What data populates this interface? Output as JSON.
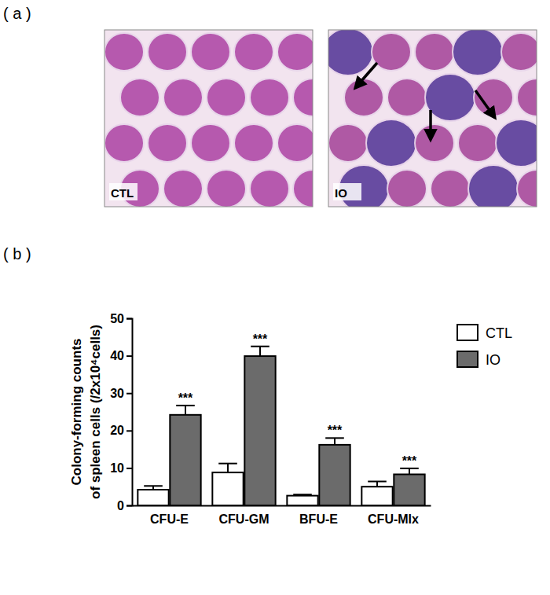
{
  "figure": {
    "panel_labels": [
      "( a )",
      "( b )"
    ],
    "micrographs": [
      "CTL",
      "IO"
    ]
  },
  "chart_data": {
    "type": "bar",
    "ylabel": "Colony-forming counts\nof spleen cells (/2x10⁴cells)",
    "categories": [
      "CFU-E",
      "CFU-GM",
      "BFU-E",
      "CFU-MIx"
    ],
    "series": [
      {
        "name": "CTL",
        "color": "#ffffff",
        "values": [
          4.2,
          8.8,
          2.6,
          5.0
        ],
        "errors": [
          1.0,
          2.4,
          0.3,
          1.4
        ]
      },
      {
        "name": "IO",
        "color": "#6b6b6b",
        "values": [
          24.2,
          39.9,
          16.2,
          8.3
        ],
        "errors": [
          2.5,
          2.6,
          1.8,
          1.6
        ],
        "significance": [
          "***",
          "***",
          "***",
          "***"
        ]
      }
    ],
    "ylim": [
      0,
      50
    ],
    "yticks": [
      0,
      10,
      20,
      30,
      40,
      50
    ],
    "legend": "upper right",
    "grid": false
  }
}
